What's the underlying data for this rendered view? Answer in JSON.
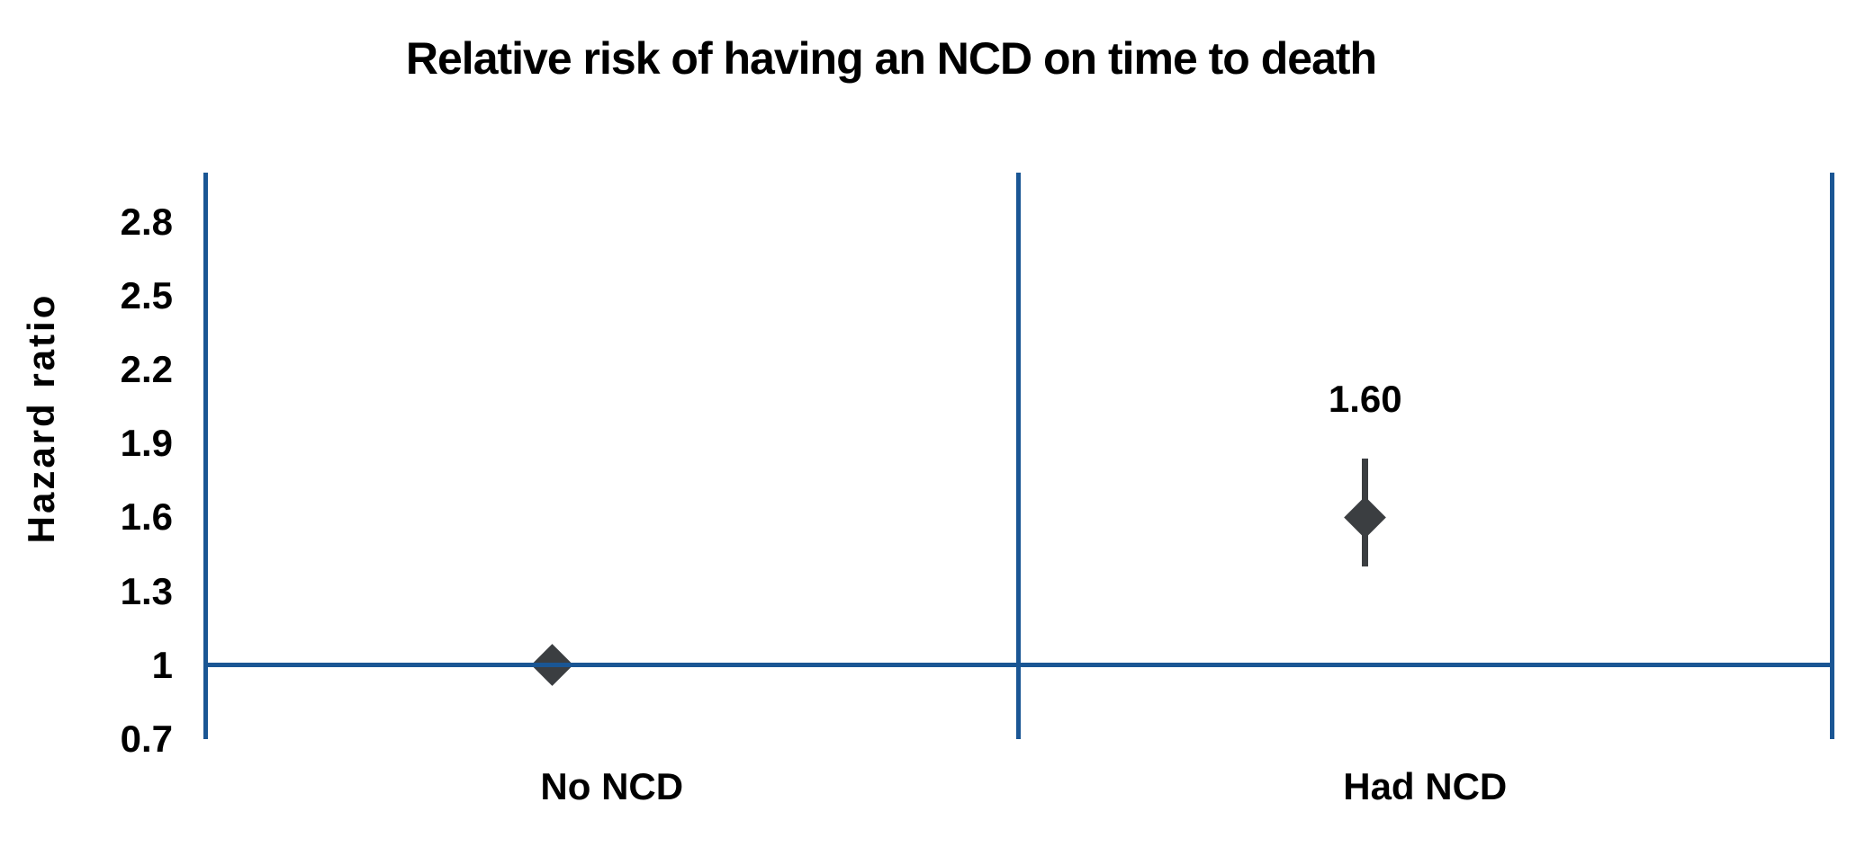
{
  "chart_data": {
    "type": "scatter",
    "title": "Relative risk of having an NCD on time to death",
    "ylabel": "Hazard ratio",
    "xlabel": "",
    "categories": [
      "No NCD",
      "Had NCD"
    ],
    "y_tick_labels": [
      "0.7",
      "1",
      "1.3",
      "1.6",
      "1.9",
      "2.2",
      "2.5",
      "2.8"
    ],
    "y_tick_values": [
      0.7,
      1,
      1.3,
      1.6,
      1.9,
      2.2,
      2.5,
      2.8
    ],
    "ylim": [
      0.7,
      3.0
    ],
    "reference_line_y": 1,
    "grid": "off",
    "legend": "none",
    "marker": "diamond",
    "points": [
      {
        "category": "No NCD",
        "value": 1.0,
        "label": ""
      },
      {
        "category": "Had NCD",
        "value": 1.6,
        "ci_lower": 1.4,
        "ci_upper": 1.84,
        "label": "1.60"
      }
    ],
    "colors": {
      "axis_line": "#1A5694",
      "marker": "#3B3E41",
      "error_bar": "#3B3E41",
      "text": "#000000",
      "background": "#FFFFFF"
    }
  }
}
